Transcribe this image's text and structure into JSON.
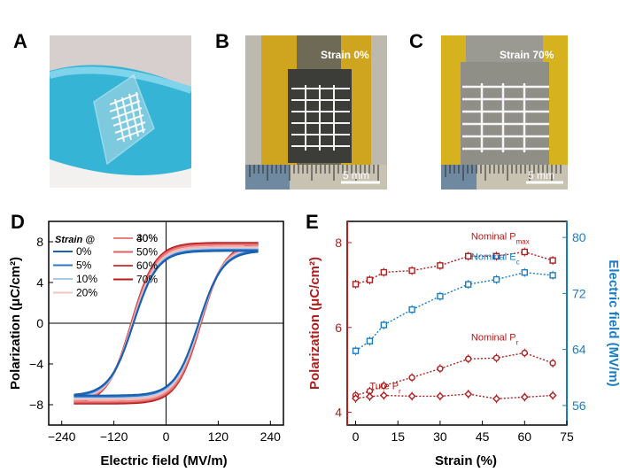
{
  "panels": {
    "A": "A",
    "B": "B",
    "C": "C",
    "D": "D",
    "E": "E"
  },
  "photos": {
    "B": {
      "strain_label": "Strain 0%",
      "scale_label": "5 mm"
    },
    "C": {
      "strain_label": "Strain 70%",
      "scale_label": "5 mm"
    }
  },
  "chart_data": [
    {
      "type": "line",
      "id": "D",
      "xlabel": "Electric field (MV/m)",
      "ylabel": "Polarization (μC/cm²)",
      "xlim": [
        -270,
        270
      ],
      "ylim": [
        -10,
        10
      ],
      "xticks": [
        "−240",
        "−120",
        "0",
        "120",
        "240"
      ],
      "yticks": [
        "8",
        "4",
        "0",
        "−4",
        "−8"
      ],
      "legend_title": "Strain @",
      "series": [
        {
          "name": "0%",
          "color": "#1a5fb0",
          "pmax": 7.1,
          "pr": 3.9,
          "ec": 75
        },
        {
          "name": "5%",
          "color": "#2b78c8",
          "pmax": 7.2,
          "pr": 4.0,
          "ec": 75
        },
        {
          "name": "10%",
          "color": "#a9c8e8",
          "pmax": 7.3,
          "pr": 4.2,
          "ec": 76
        },
        {
          "name": "20%",
          "color": "#f2c4c4",
          "pmax": 7.4,
          "pr": 4.4,
          "ec": 77
        },
        {
          "name": "30%",
          "color": "#f0b0b0",
          "pmax": 7.5,
          "pr": 4.6,
          "ec": 77
        },
        {
          "name": "40%",
          "color": "#e88080",
          "pmax": 7.7,
          "pr": 4.9,
          "ec": 78
        },
        {
          "name": "50%",
          "color": "#e06060",
          "pmax": 7.7,
          "pr": 5.0,
          "ec": 79
        },
        {
          "name": "60%",
          "color": "#d04040",
          "pmax": 7.8,
          "pr": 5.1,
          "ec": 80
        },
        {
          "name": "70%",
          "color": "#b81818",
          "pmax": 7.9,
          "pr": 5.2,
          "ec": 80
        }
      ],
      "emax": 210
    },
    {
      "type": "line",
      "id": "E",
      "xlabel": "Strain (%)",
      "ylabel_left": "Polarization (μC/cm²)",
      "ylabel_right": "Electric field (MV/m)",
      "xlim": [
        -3,
        75
      ],
      "ylim_left": [
        3.7,
        8.5
      ],
      "ylim_right": [
        53.2,
        82.3
      ],
      "xticks": [
        "0",
        "15",
        "30",
        "45",
        "60",
        "75"
      ],
      "yticks_left": [
        "8",
        "6",
        "4"
      ],
      "yticks_right": [
        "80",
        "72",
        "64",
        "56"
      ],
      "x": [
        0,
        5,
        10,
        20,
        30,
        40,
        50,
        60,
        70
      ],
      "series": [
        {
          "name": "Nominal P",
          "sub": "max",
          "axis": "left",
          "color": "#b01e1e",
          "marker": "square",
          "values": [
            7.02,
            7.12,
            7.3,
            7.34,
            7.46,
            7.68,
            7.68,
            7.78,
            7.58
          ]
        },
        {
          "name": "Nominal E",
          "sub": "c",
          "axis": "right",
          "color": "#1a7dc4",
          "marker": "square",
          "values": [
            63.8,
            65.2,
            67.5,
            69.7,
            71.6,
            73.3,
            74.0,
            75.0,
            74.6
          ]
        },
        {
          "name": "Nominal P",
          "sub": "r",
          "axis": "left",
          "color": "#b01e1e",
          "marker": "circle",
          "values": [
            4.4,
            4.5,
            4.63,
            4.82,
            5.03,
            5.26,
            5.28,
            5.4,
            5.16
          ]
        },
        {
          "name": "Ture P",
          "sub": "r",
          "axis": "left",
          "color": "#b01e1e",
          "marker": "diamond",
          "values": [
            4.33,
            4.37,
            4.4,
            4.38,
            4.38,
            4.43,
            4.32,
            4.36,
            4.4
          ]
        }
      ]
    }
  ],
  "colors": {
    "left_axis": "#b01e1e",
    "right_axis": "#1a7dc4"
  }
}
